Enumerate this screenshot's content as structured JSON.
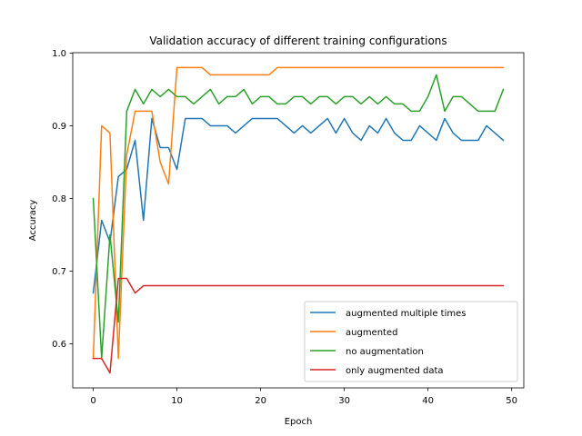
{
  "chart_data": {
    "type": "line",
    "title": "Validation accuracy of different training configurations",
    "xlabel": "Epoch",
    "ylabel": "Accuracy",
    "xlim": [
      -2.45,
      51.45
    ],
    "ylim": [
      0.5395,
      1.0005
    ],
    "xticks": [
      0,
      10,
      20,
      30,
      40,
      50
    ],
    "yticks": [
      0.6,
      0.7,
      0.8,
      0.9,
      1.0
    ],
    "ytick_labels": [
      "0.6",
      "0.7",
      "0.8",
      "0.9",
      "1.0"
    ],
    "legend_position": "lower-right",
    "grid": false,
    "x": [
      0,
      1,
      2,
      3,
      4,
      5,
      6,
      7,
      8,
      9,
      10,
      11,
      12,
      13,
      14,
      15,
      16,
      17,
      18,
      19,
      20,
      21,
      22,
      23,
      24,
      25,
      26,
      27,
      28,
      29,
      30,
      31,
      32,
      33,
      34,
      35,
      36,
      37,
      38,
      39,
      40,
      41,
      42,
      43,
      44,
      45,
      46,
      47,
      48,
      49
    ],
    "series": [
      {
        "name": "augmented multiple times",
        "color": "#1f77b4",
        "values": [
          0.67,
          0.77,
          0.74,
          0.83,
          0.84,
          0.88,
          0.77,
          0.91,
          0.87,
          0.87,
          0.84,
          0.91,
          0.91,
          0.91,
          0.9,
          0.9,
          0.9,
          0.89,
          0.9,
          0.91,
          0.91,
          0.91,
          0.91,
          0.9,
          0.89,
          0.9,
          0.89,
          0.9,
          0.91,
          0.89,
          0.91,
          0.89,
          0.88,
          0.9,
          0.89,
          0.91,
          0.89,
          0.88,
          0.88,
          0.9,
          0.89,
          0.88,
          0.91,
          0.89,
          0.88,
          0.88,
          0.88,
          0.9,
          0.89,
          0.88
        ]
      },
      {
        "name": "augmented",
        "color": "#ff7f0e",
        "values": [
          0.58,
          0.9,
          0.89,
          0.58,
          0.86,
          0.92,
          0.92,
          0.92,
          0.85,
          0.82,
          0.98,
          0.98,
          0.98,
          0.98,
          0.97,
          0.97,
          0.97,
          0.97,
          0.97,
          0.97,
          0.97,
          0.97,
          0.98,
          0.98,
          0.98,
          0.98,
          0.98,
          0.98,
          0.98,
          0.98,
          0.98,
          0.98,
          0.98,
          0.98,
          0.98,
          0.98,
          0.98,
          0.98,
          0.98,
          0.98,
          0.98,
          0.98,
          0.98,
          0.98,
          0.98,
          0.98,
          0.98,
          0.98,
          0.98,
          0.98
        ]
      },
      {
        "name": "no augmentation",
        "color": "#2ca02c",
        "values": [
          0.8,
          0.58,
          0.75,
          0.63,
          0.92,
          0.95,
          0.93,
          0.95,
          0.94,
          0.95,
          0.94,
          0.94,
          0.93,
          0.94,
          0.95,
          0.93,
          0.94,
          0.94,
          0.95,
          0.93,
          0.94,
          0.94,
          0.93,
          0.93,
          0.94,
          0.94,
          0.93,
          0.94,
          0.94,
          0.93,
          0.94,
          0.94,
          0.93,
          0.94,
          0.93,
          0.94,
          0.93,
          0.93,
          0.92,
          0.92,
          0.94,
          0.97,
          0.92,
          0.94,
          0.94,
          0.93,
          0.92,
          0.92,
          0.92,
          0.95
        ]
      },
      {
        "name": "only augmented data",
        "color": "#d62728",
        "values": [
          0.58,
          0.58,
          0.56,
          0.69,
          0.69,
          0.67,
          0.68,
          0.68,
          0.68,
          0.68,
          0.68,
          0.68,
          0.68,
          0.68,
          0.68,
          0.68,
          0.68,
          0.68,
          0.68,
          0.68,
          0.68,
          0.68,
          0.68,
          0.68,
          0.68,
          0.68,
          0.68,
          0.68,
          0.68,
          0.68,
          0.68,
          0.68,
          0.68,
          0.68,
          0.68,
          0.68,
          0.68,
          0.68,
          0.68,
          0.68,
          0.68,
          0.68,
          0.68,
          0.68,
          0.68,
          0.68,
          0.68,
          0.68,
          0.68,
          0.68
        ]
      }
    ]
  }
}
